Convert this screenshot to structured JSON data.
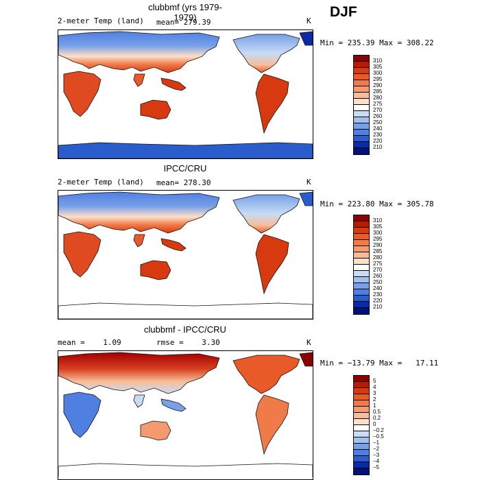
{
  "season": "DJF",
  "panels": [
    {
      "title": "clubbmf (yrs 1979-1979)",
      "field_label": "2-meter Temp (land)",
      "stat_label": "mean= 279.39",
      "units": "K",
      "minmax": "Min = 235.39 Max = 308.22",
      "map_style": "model"
    },
    {
      "title": "IPCC/CRU",
      "field_label": "2-meter Temp (land)",
      "stat_label": "mean= 278.30",
      "units": "K",
      "minmax": "Min = 223.80 Max = 305.78",
      "map_style": "obs"
    },
    {
      "title": "clubbmf - IPCC/CRU",
      "field_label": "mean =    1.09",
      "stat_label": "rmse =    3.30",
      "units": "K",
      "minmax": "Min = −13.79 Max =   17.11",
      "map_style": "diff"
    }
  ],
  "colorbars": [
    {
      "labels": [
        "310",
        "305",
        "300",
        "295",
        "290",
        "285",
        "280",
        "275",
        "270",
        "260",
        "250",
        "240",
        "230",
        "220",
        "210"
      ],
      "colors": [
        "#8b0000",
        "#b81a00",
        "#d83a10",
        "#e85a28",
        "#f07a48",
        "#f59a70",
        "#f8bc98",
        "#fde0c8",
        "#ffffff",
        "#c8dcf4",
        "#a0c0ee",
        "#78a0e8",
        "#4f7fe0",
        "#2a5ccc",
        "#0a2aa8",
        "#00127a"
      ]
    },
    {
      "labels": [
        "310",
        "305",
        "300",
        "295",
        "290",
        "285",
        "280",
        "275",
        "270",
        "260",
        "250",
        "240",
        "230",
        "220",
        "210"
      ],
      "colors": [
        "#8b0000",
        "#b81a00",
        "#d83a10",
        "#e85a28",
        "#f07a48",
        "#f59a70",
        "#f8bc98",
        "#fde0c8",
        "#ffffff",
        "#c8dcf4",
        "#a0c0ee",
        "#78a0e8",
        "#4f7fe0",
        "#2a5ccc",
        "#0a2aa8",
        "#00127a"
      ]
    },
    {
      "labels": [
        "5",
        "4",
        "3",
        "2",
        "1",
        "0.5",
        "0.2",
        "0",
        "−0.2",
        "−0.5",
        "−1",
        "−2",
        "−3",
        "−4",
        "−5"
      ],
      "colors": [
        "#8b0000",
        "#b81a00",
        "#d83a10",
        "#e85a28",
        "#f07a48",
        "#f59a70",
        "#f8bc98",
        "#fde0c8",
        "#ffffff",
        "#c8dcf4",
        "#a0c0ee",
        "#78a0e8",
        "#4f7fe0",
        "#2a5ccc",
        "#0a2aa8",
        "#00127a"
      ]
    }
  ]
}
